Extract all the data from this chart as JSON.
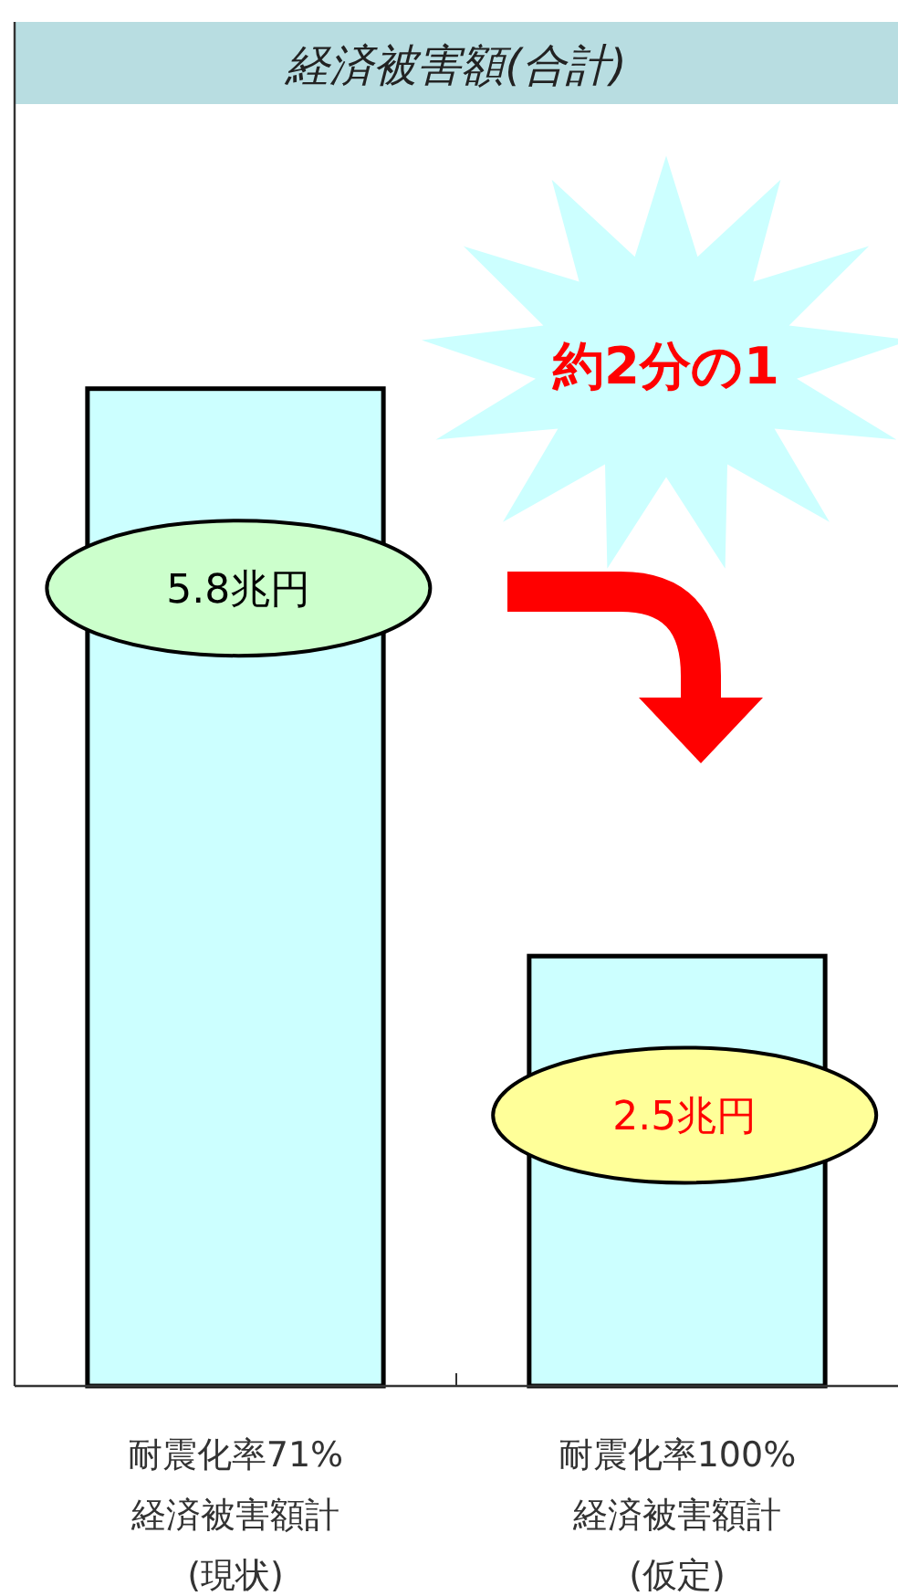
{
  "chart_data": {
    "type": "bar",
    "title": "経済被害額(合計)",
    "categories": [
      "耐震化率71%\n経済被害額計\n(現状)",
      "耐震化率100%\n経済被害額計\n(仮定)"
    ],
    "values": [
      5.8,
      2.5
    ],
    "color": "#ccffff",
    "value_labels": [
      "5.8兆円",
      "2.5兆円"
    ],
    "annotations": [
      "約2分の1"
    ]
  }
}
